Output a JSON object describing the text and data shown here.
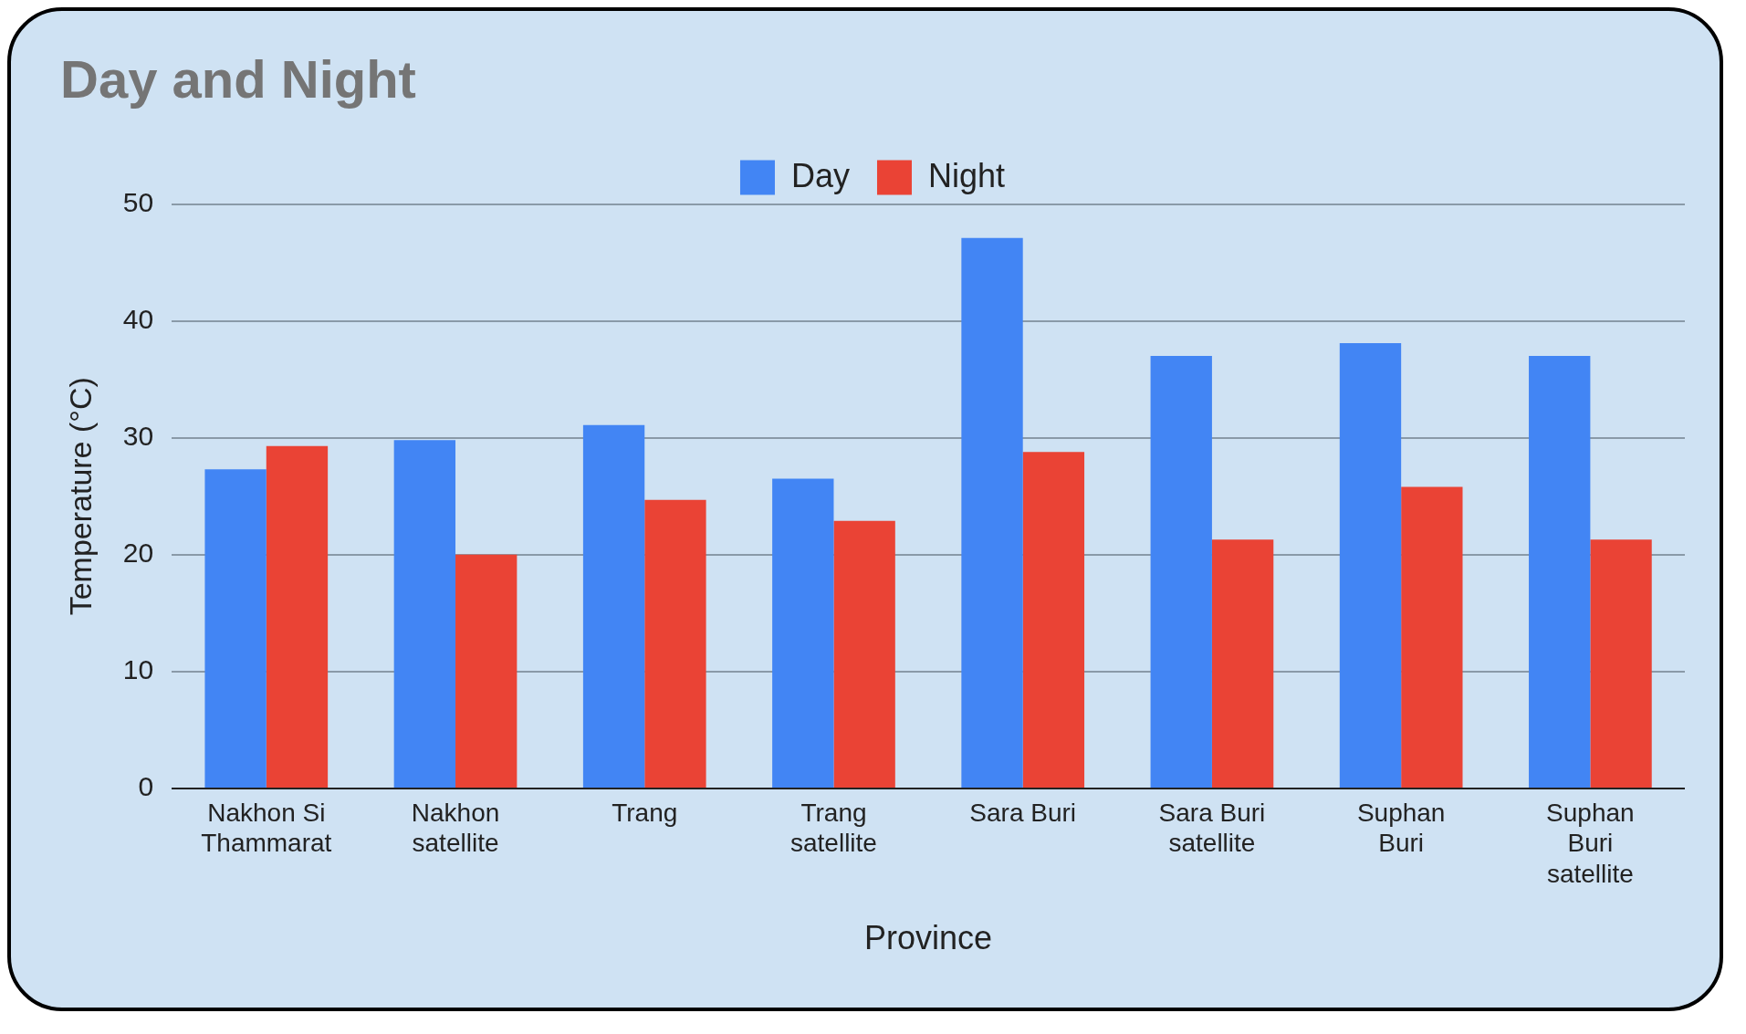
{
  "chart_data": {
    "type": "bar",
    "title": "Day and Night",
    "xlabel": "Province",
    "ylabel": "Temperature (°C)",
    "categories": [
      "Nakhon Si Thammarat",
      "Nakhon satellite",
      "Trang",
      "Trang satellite",
      "Sara Buri",
      "Sara Buri satellite",
      "Suphan Buri",
      "Suphan Buri satellite"
    ],
    "series": [
      {
        "name": "Day",
        "color": "#4285f4",
        "values": [
          27.3,
          29.8,
          31.1,
          26.5,
          47.1,
          37.0,
          38.1,
          37.0
        ]
      },
      {
        "name": "Night",
        "color": "#ea4335",
        "values": [
          29.3,
          20.0,
          24.7,
          22.9,
          28.8,
          21.3,
          25.8,
          21.3
        ]
      }
    ],
    "ylim": [
      0,
      50
    ],
    "yticks": [
      0,
      10,
      20,
      30,
      40,
      50
    ],
    "grid": "y",
    "legend": "top"
  }
}
